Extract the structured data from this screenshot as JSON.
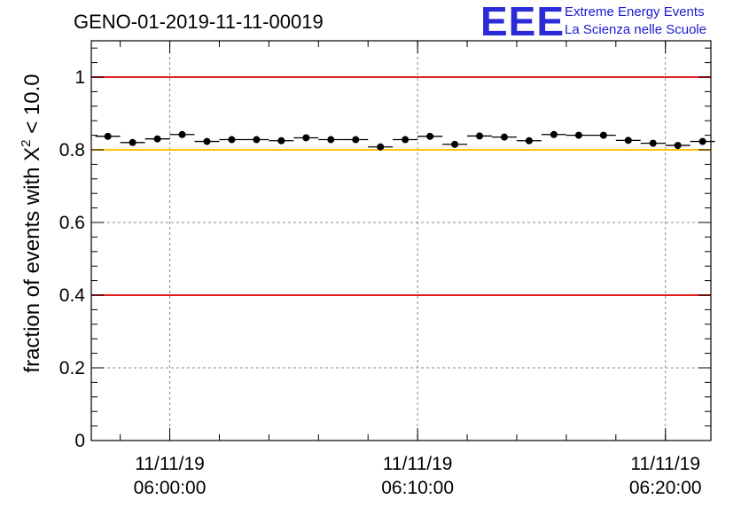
{
  "chart_data": {
    "type": "scatter",
    "title": "GENO-01-2019-11-11-00019",
    "ylabel_main": "fraction of events with ",
    "ylabel_symbol": "X",
    "ylabel_exp": "2",
    "ylabel_tail": " < 10.0",
    "xlabel": "",
    "y_ticks": [
      "0",
      "0.2",
      "0.4",
      "0.6",
      "0.8",
      "1"
    ],
    "ylim": [
      0,
      1.1
    ],
    "xlim": [
      "2019-11-11 05:56:50",
      "2019-11-11 06:21:50"
    ],
    "x_ticks": [
      {
        "date": "11/11/19",
        "time": "06:00:00"
      },
      {
        "date": "11/11/19",
        "time": "06:10:00"
      },
      {
        "date": "11/11/19",
        "time": "06:20:00"
      }
    ],
    "grid": true,
    "reference_lines": [
      {
        "y": 1.0,
        "color": "#e02020"
      },
      {
        "y": 0.8,
        "color": "#ffc000"
      },
      {
        "y": 0.4,
        "color": "#e02020"
      }
    ],
    "series": [
      {
        "x": [
          "05:57:30",
          "05:58:30",
          "05:59:30",
          "06:00:30",
          "06:01:30",
          "06:02:30",
          "06:03:30",
          "06:04:30",
          "06:05:30",
          "06:06:30",
          "06:07:30",
          "06:08:30",
          "06:09:30",
          "06:10:30",
          "06:11:30",
          "06:12:30",
          "06:13:30",
          "06:14:30",
          "06:15:30",
          "06:16:30",
          "06:17:30",
          "06:18:30",
          "06:19:30",
          "06:20:30",
          "06:21:30"
        ],
        "values": [
          0.837,
          0.82,
          0.83,
          0.842,
          0.823,
          0.828,
          0.828,
          0.825,
          0.833,
          0.828,
          0.828,
          0.808,
          0.828,
          0.837,
          0.815,
          0.838,
          0.835,
          0.825,
          0.842,
          0.84,
          0.84,
          0.826,
          0.818,
          0.812,
          0.823
        ],
        "x_halfwidth_s": 30,
        "color": "#000000"
      }
    ]
  },
  "logo": {
    "big": "EEE",
    "line1": "Extreme Energy Events",
    "line2": "La Scienza nelle Scuole"
  }
}
